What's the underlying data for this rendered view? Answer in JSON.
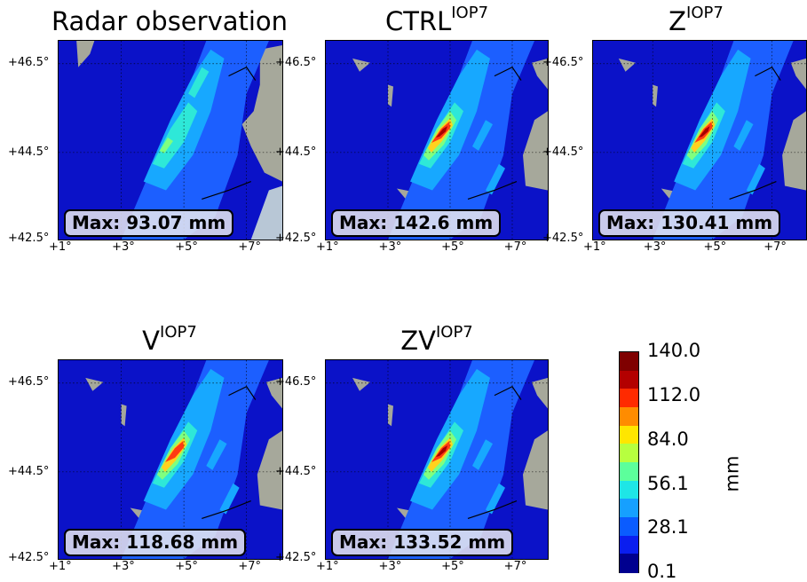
{
  "figure": {
    "panels": [
      {
        "id": "radar",
        "title": "Radar observation",
        "title_sup": "",
        "max_text": "Max: 93.07 mm",
        "max_value": 93.07,
        "variant": "radar"
      },
      {
        "id": "ctrl",
        "title": "CTRL",
        "title_sup": "IOP7",
        "max_text": "Max: 142.6 mm",
        "max_value": 142.6,
        "variant": "model"
      },
      {
        "id": "z",
        "title": "Z",
        "title_sup": "IOP7",
        "max_text": "Max: 130.41 mm",
        "max_value": 130.41,
        "variant": "model"
      },
      {
        "id": "v",
        "title": "V",
        "title_sup": "IOP7",
        "max_text": "Max: 118.68 mm",
        "max_value": 118.68,
        "variant": "model"
      },
      {
        "id": "zv",
        "title": "ZV",
        "title_sup": "IOP7",
        "max_text": "Max: 133.52 mm",
        "max_value": 133.52,
        "variant": "model"
      }
    ],
    "lat_ticks": [
      "+46.5°",
      "+44.5°",
      "+42.5°"
    ],
    "lon_ticks": [
      "+1°",
      "+3°",
      "+5°",
      "+7°"
    ],
    "colorbar": {
      "unit": "mm",
      "labels": [
        "140.0",
        "112.0",
        "84.0",
        "56.1",
        "28.1",
        "0.1"
      ],
      "colors": [
        "#7f0000",
        "#b30000",
        "#ff2a00",
        "#ff8c00",
        "#ffe600",
        "#b7ff3f",
        "#5cff9b",
        "#1ee6e6",
        "#16a0ff",
        "#0a5cff",
        "#0a1eef",
        "#00008f"
      ]
    },
    "map_colors": {
      "ocean": "#0b12c8",
      "land": "#a6a89b",
      "light_rain": "#1c5fff",
      "moderate_rain": "#17a8ff",
      "heavy_rain": "#2ee8d8",
      "intense_rain": "#7fff7f",
      "very_intense": "#ffd21e",
      "extreme": "#ff3a12",
      "peak": "#a60000"
    }
  }
}
